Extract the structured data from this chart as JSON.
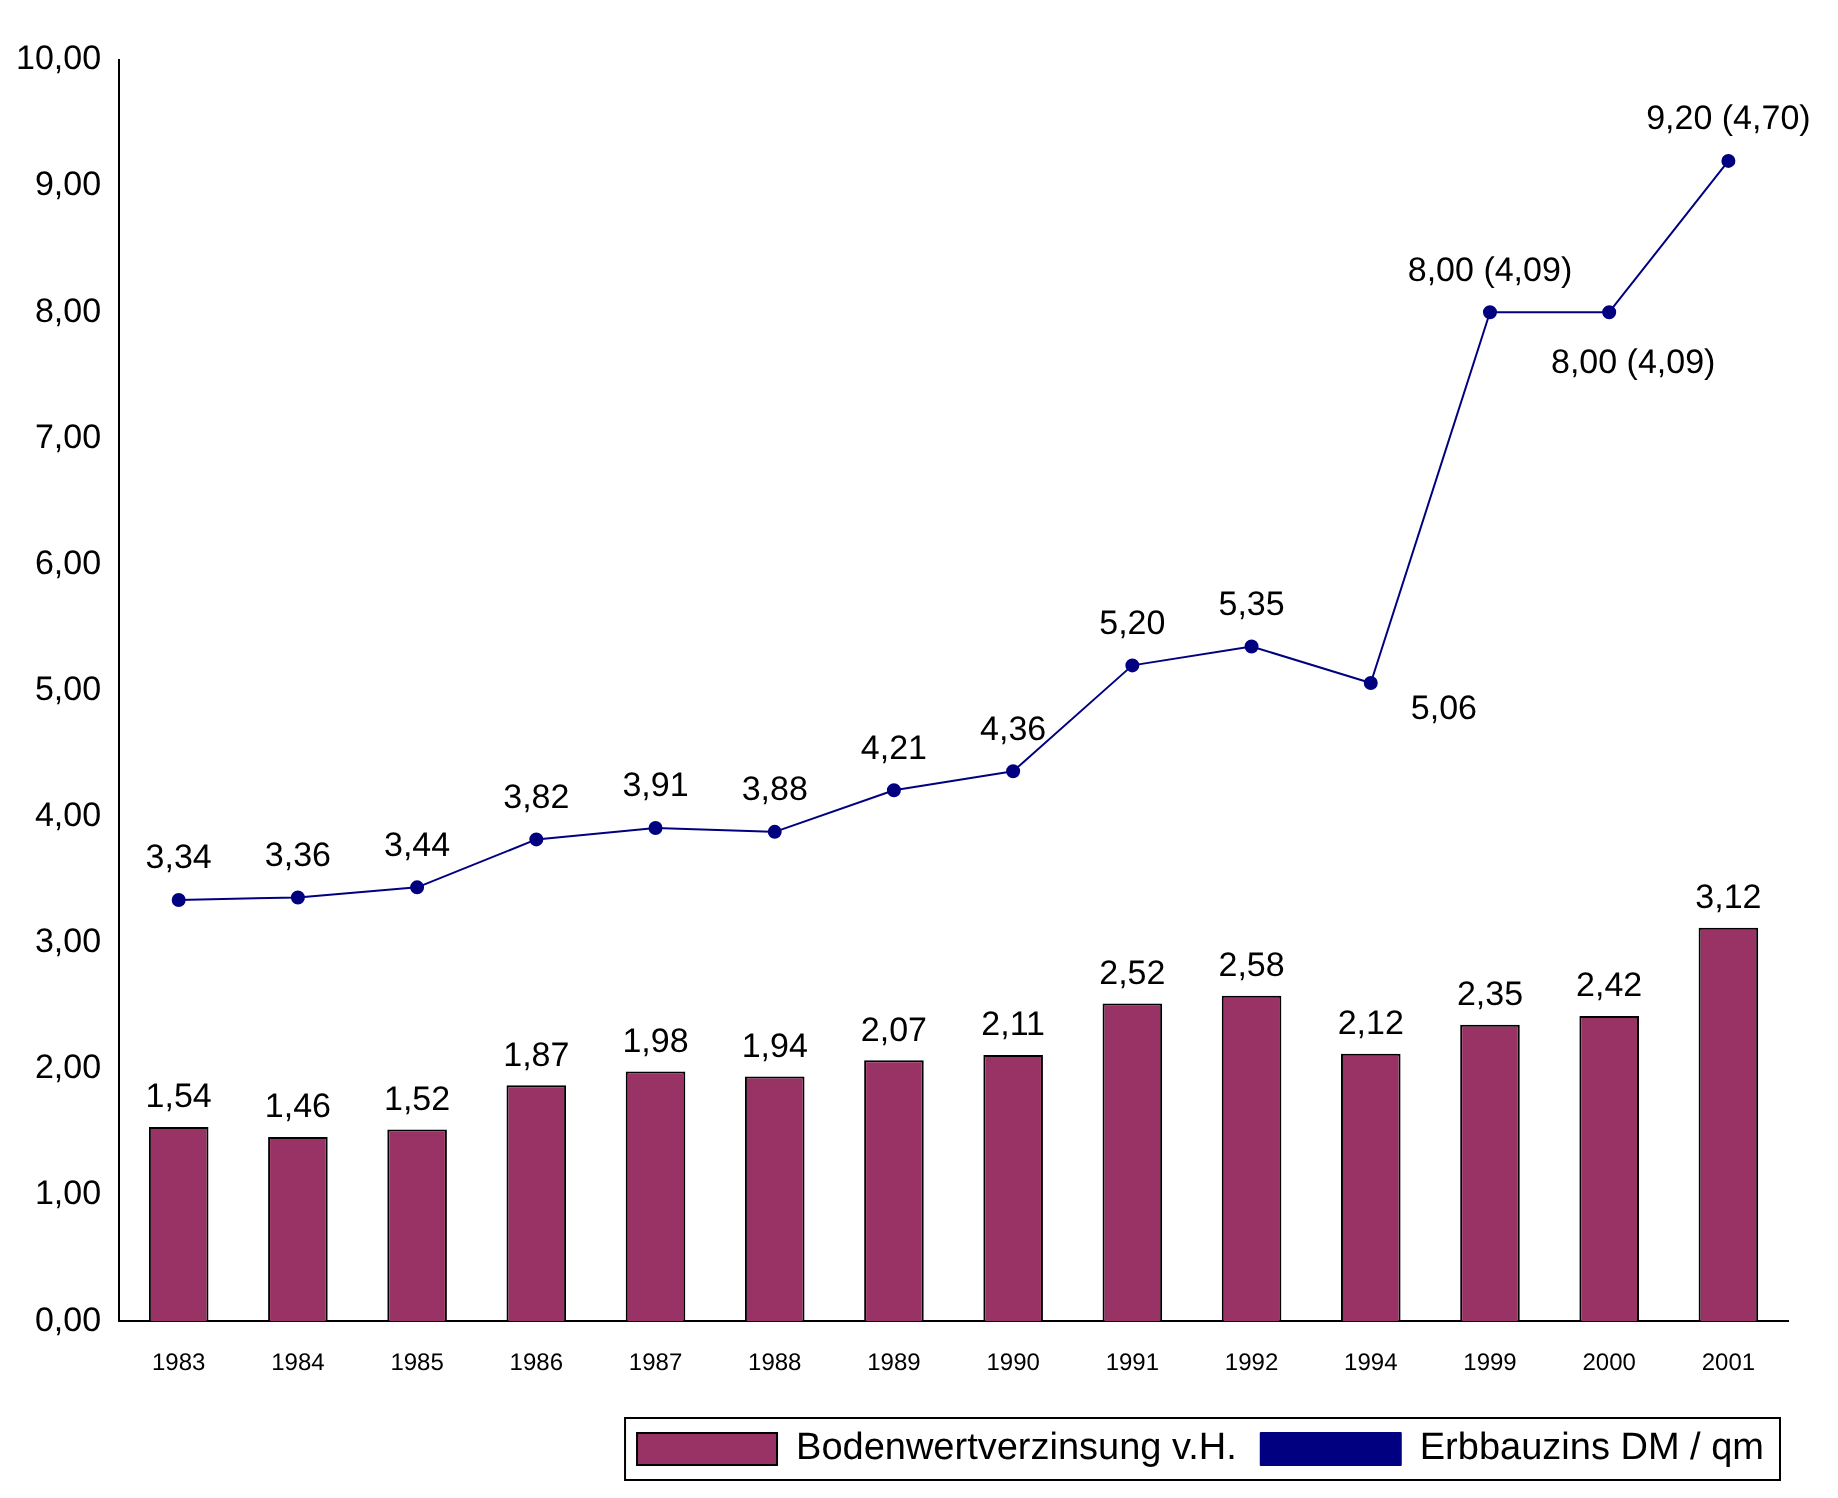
{
  "chart_data": {
    "type": "bar",
    "categories": [
      "1983",
      "1984",
      "1985",
      "1986",
      "1987",
      "1988",
      "1989",
      "1990",
      "1991",
      "1992",
      "1994",
      "1999",
      "2000",
      "2001"
    ],
    "series": [
      {
        "name": "Bodenwertverzinsung v.H.",
        "color": "#993366",
        "values": [
          1.54,
          1.46,
          1.52,
          1.87,
          1.98,
          1.94,
          2.07,
          2.11,
          2.52,
          2.58,
          2.12,
          2.35,
          2.42,
          3.12
        ],
        "value_labels": [
          "1,54",
          "1,46",
          "1,52",
          "1,87",
          "1,98",
          "1,94",
          "2,07",
          "2,11",
          "2,52",
          "2,58",
          "2,12",
          "2,35",
          "2,42",
          "3,12"
        ]
      },
      {
        "name": "Erbbauzins DM / qm",
        "type": "line",
        "color": "#000080",
        "marker": "circle",
        "values": [
          3.34,
          3.36,
          3.44,
          3.82,
          3.91,
          3.88,
          4.21,
          4.36,
          5.2,
          5.35,
          5.06,
          8.0,
          8.0,
          9.2
        ],
        "value_labels": [
          "3,34",
          "3,36",
          "3,44",
          "3,82",
          "3,91",
          "3,88",
          "4,21",
          "4,36",
          "5,20",
          "5,35",
          "5,06",
          "8,00 (4,09)",
          "8,00 (4,09)",
          "9,20 (4,70)"
        ]
      }
    ],
    "ylim": [
      0,
      10
    ],
    "yticks": [
      {
        "value": 0,
        "label": "0,00"
      },
      {
        "value": 1,
        "label": "1,00"
      },
      {
        "value": 2,
        "label": "2,00"
      },
      {
        "value": 3,
        "label": "3,00"
      },
      {
        "value": 4,
        "label": "4,00"
      },
      {
        "value": 5,
        "label": "5,00"
      },
      {
        "value": 6,
        "label": "6,00"
      },
      {
        "value": 7,
        "label": "7,00"
      },
      {
        "value": 8,
        "label": "8,00"
      },
      {
        "value": 9,
        "label": "9,00"
      },
      {
        "value": 10,
        "label": "10,00"
      }
    ],
    "grid": false,
    "legend": "bottom"
  }
}
